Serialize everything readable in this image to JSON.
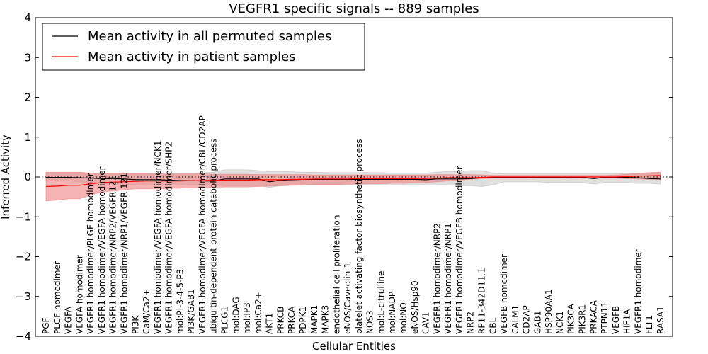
{
  "chart_data": {
    "type": "line",
    "title": "VEGFR1 specific signals -- 889 samples",
    "xlabel": "Cellular Entities",
    "ylabel": "Inferred Activity",
    "ylim": [
      -4,
      4
    ],
    "yticks": [
      -4,
      -3,
      -2,
      -1,
      0,
      1,
      2,
      3,
      4
    ],
    "grid": false,
    "legend_position": "top-left",
    "categories": [
      "PGF",
      "PLGF homodimer",
      "VEGFA",
      "VEGFA homodimer",
      "VEGFR1 homodimer/PLGF homodimer",
      "VEGFR1 homodimer/VEGFA homodimer",
      "VEGFR1 homodimer/NRP2/VEGFR121",
      "VEGFR1 homodimer/NRP1/VEGFR 121",
      "PI3K",
      "CaM/Ca2+",
      "VEGFR1 homodimer/VEGFA homodimer/NCK1",
      "VEGFR1 homodimer/VEGFA homodimer/SHP2",
      "mol:PI-3-4-5-P3",
      "PI3K/GAB1",
      "VEGFR1 homodimer/VEGFA homodimer/CBL/CD2AP",
      "ubiquitin-dependent protein catabolic process",
      "PLCG1",
      "mol:DAG",
      "mol:IP3",
      "mol:Ca2+",
      "AKT1",
      "PRKCB",
      "PRKCA",
      "PDPK1",
      "MAPK1",
      "MAPK3",
      "endothelial cell proliferation",
      "eNOS/Caveolin-1",
      "platelet activating factor biosynthetic process",
      "NOS3",
      "mol:L-citrulline",
      "mol:NADP",
      "mol:NO",
      "eNOS/Hsp90",
      "CAV1",
      "VEGFR1 homodimer/NRP2",
      "VEGFR1 homodimer/NRP1",
      "VEGFR1 homodimer/VEGFB homodimer",
      "NRP2",
      "RP11-342D11.1",
      "CBL",
      "VEGFB homodimer",
      "CALM1",
      "CD2AP",
      "GAB1",
      "HSP90AA1",
      "NCK1",
      "PIK3CA",
      "PIK3R1",
      "PRKACA",
      "PTPN11",
      "VEGFB",
      "HIF1A",
      "VEGFR1 homodimer",
      "FLT1",
      "RASA1"
    ],
    "series": [
      {
        "name": "Mean activity in all permuted samples",
        "color": "#000000",
        "band_color": "#bbbbbb",
        "values": [
          -0.01,
          -0.01,
          -0.01,
          -0.02,
          -0.03,
          -0.04,
          -0.04,
          -0.05,
          -0.07,
          -0.07,
          -0.07,
          -0.08,
          -0.09,
          -0.09,
          -0.1,
          -0.1,
          -0.05,
          -0.05,
          -0.05,
          -0.05,
          -0.12,
          -0.08,
          -0.07,
          -0.06,
          -0.06,
          -0.06,
          -0.06,
          -0.06,
          -0.06,
          -0.06,
          -0.06,
          -0.06,
          -0.06,
          -0.06,
          -0.07,
          -0.05,
          -0.05,
          -0.05,
          -0.04,
          -0.02,
          -0.01,
          -0.01,
          -0.01,
          -0.01,
          -0.02,
          -0.02,
          -0.02,
          -0.01,
          -0.01,
          -0.04,
          -0.01,
          -0.01,
          -0.01,
          -0.02,
          -0.04,
          -0.05
        ],
        "band_upper": [
          0.1,
          0.1,
          0.1,
          0.09,
          0.09,
          0.09,
          0.08,
          0.08,
          0.08,
          0.08,
          0.08,
          0.07,
          0.06,
          0.06,
          0.1,
          0.12,
          0.18,
          0.18,
          0.18,
          0.16,
          0.14,
          0.14,
          0.13,
          0.12,
          0.12,
          0.11,
          0.11,
          0.11,
          0.11,
          0.11,
          0.11,
          0.1,
          0.1,
          0.1,
          0.1,
          0.12,
          0.14,
          0.14,
          0.16,
          0.16,
          0.1,
          0.08,
          0.08,
          0.08,
          0.08,
          0.08,
          0.08,
          0.08,
          0.08,
          0.08,
          0.08,
          0.08,
          0.08,
          0.08,
          0.08,
          0.08
        ],
        "band_lower": [
          -0.1,
          -0.1,
          -0.1,
          -0.12,
          -0.14,
          -0.16,
          -0.18,
          -0.18,
          -0.2,
          -0.2,
          -0.2,
          -0.2,
          -0.2,
          -0.2,
          -0.2,
          -0.2,
          -0.22,
          -0.22,
          -0.22,
          -0.22,
          -0.26,
          -0.22,
          -0.2,
          -0.2,
          -0.2,
          -0.2,
          -0.2,
          -0.2,
          -0.2,
          -0.2,
          -0.2,
          -0.2,
          -0.2,
          -0.2,
          -0.2,
          -0.2,
          -0.2,
          -0.22,
          -0.22,
          -0.24,
          -0.2,
          -0.12,
          -0.12,
          -0.12,
          -0.12,
          -0.14,
          -0.14,
          -0.14,
          -0.14,
          -0.18,
          -0.14,
          -0.14,
          -0.14,
          -0.16,
          -0.16,
          -0.18
        ]
      },
      {
        "name": "Mean activity in patient samples",
        "color": "#ff0000",
        "band_color": "#f08080",
        "values": [
          -0.24,
          -0.23,
          -0.21,
          -0.21,
          -0.17,
          -0.14,
          -0.13,
          -0.12,
          -0.11,
          -0.1,
          -0.1,
          -0.1,
          -0.1,
          -0.09,
          -0.09,
          -0.08,
          -0.08,
          -0.08,
          -0.08,
          -0.07,
          -0.07,
          -0.07,
          -0.06,
          -0.06,
          -0.05,
          -0.05,
          -0.05,
          -0.05,
          -0.04,
          -0.04,
          -0.04,
          -0.04,
          -0.04,
          -0.04,
          -0.04,
          -0.03,
          -0.02,
          -0.02,
          -0.02,
          -0.01,
          0.0,
          0.0,
          0.0,
          0.0,
          0.0,
          0.0,
          0.0,
          0.0,
          0.0,
          0.0,
          0.0,
          0.0,
          0.01,
          0.02,
          0.03,
          0.04
        ],
        "band_upper": [
          0.12,
          0.12,
          0.12,
          0.12,
          0.1,
          0.1,
          0.1,
          0.09,
          0.08,
          0.08,
          0.08,
          0.08,
          0.08,
          0.08,
          0.08,
          0.07,
          0.07,
          0.07,
          0.07,
          0.06,
          0.06,
          0.06,
          0.06,
          0.06,
          0.05,
          0.05,
          0.05,
          0.05,
          0.05,
          0.05,
          0.05,
          0.05,
          0.05,
          0.05,
          0.05,
          0.06,
          0.06,
          0.06,
          0.06,
          0.05,
          0.04,
          0.04,
          0.04,
          0.04,
          0.04,
          0.04,
          0.04,
          0.04,
          0.04,
          0.04,
          0.04,
          0.05,
          0.07,
          0.09,
          0.11,
          0.12
        ],
        "band_lower": [
          -0.6,
          -0.58,
          -0.55,
          -0.55,
          -0.45,
          -0.38,
          -0.35,
          -0.32,
          -0.3,
          -0.3,
          -0.3,
          -0.29,
          -0.28,
          -0.27,
          -0.27,
          -0.26,
          -0.25,
          -0.25,
          -0.25,
          -0.24,
          -0.23,
          -0.22,
          -0.21,
          -0.2,
          -0.19,
          -0.19,
          -0.19,
          -0.18,
          -0.18,
          -0.17,
          -0.17,
          -0.16,
          -0.16,
          -0.15,
          -0.14,
          -0.12,
          -0.1,
          -0.08,
          -0.06,
          -0.04,
          -0.03,
          -0.03,
          -0.03,
          -0.03,
          -0.03,
          -0.03,
          -0.03,
          -0.03,
          -0.03,
          -0.03,
          -0.03,
          -0.03,
          -0.04,
          -0.05,
          -0.06,
          -0.06
        ]
      }
    ],
    "reference_line": {
      "y": 0,
      "style": "dotted"
    }
  }
}
